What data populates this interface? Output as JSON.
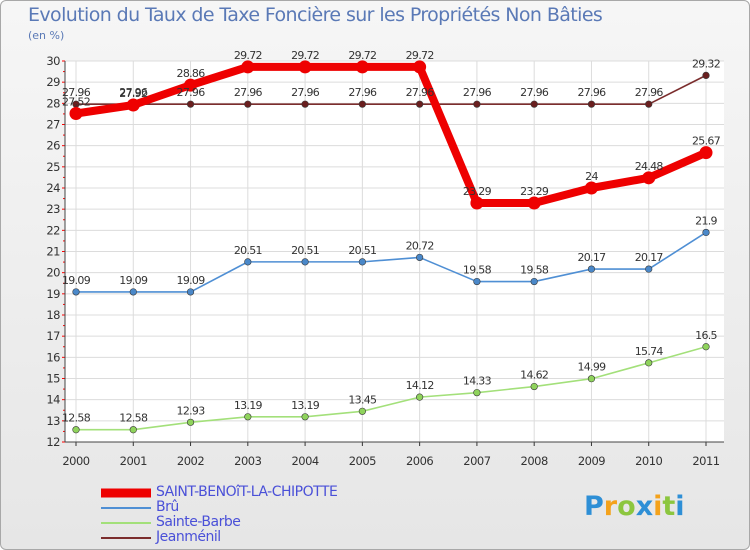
{
  "chart_data": {
    "type": "line",
    "title": "Evolution du Taux de Taxe Foncière sur les Propriétés Non Bâties",
    "ylabel": "(en %)",
    "xlabel": "",
    "ylim": [
      12,
      30
    ],
    "yticks": [
      12,
      13,
      14,
      15,
      16,
      17,
      18,
      19,
      20,
      21,
      22,
      23,
      24,
      25,
      26,
      27,
      28,
      29,
      30
    ],
    "categories": [
      "2000",
      "2001",
      "2002",
      "2003",
      "2004",
      "2005",
      "2006",
      "2007",
      "2008",
      "2009",
      "2010",
      "2011"
    ],
    "series": [
      {
        "name": "Jeanménil",
        "color": "#7b2d2d",
        "markerColor": "#6a1f1f",
        "values": [
          27.96,
          27.96,
          27.96,
          27.96,
          27.96,
          27.96,
          27.96,
          27.96,
          27.96,
          27.96,
          27.96,
          29.32
        ],
        "labels": [
          "27.96",
          "27.96",
          "27.96",
          "27.96",
          "27.96",
          "27.96",
          "27.96",
          "27.96",
          "27.96",
          "27.96",
          "27.96",
          "29.32"
        ]
      },
      {
        "name": "Brû",
        "color": "#4f8fd4",
        "markerColor": "#4a88c9",
        "values": [
          19.09,
          19.09,
          19.09,
          20.51,
          20.51,
          20.51,
          20.72,
          19.58,
          19.58,
          20.17,
          20.17,
          21.9
        ],
        "labels": [
          "19.09",
          "19.09",
          "19.09",
          "20.51",
          "20.51",
          "20.51",
          "20.72",
          "19.58",
          "19.58",
          "20.17",
          "20.17",
          "21.9"
        ]
      },
      {
        "name": "Sainte-Barbe",
        "color": "#a3e07a",
        "markerColor": "#8fd35c",
        "values": [
          12.58,
          12.58,
          12.93,
          13.19,
          13.19,
          13.45,
          14.12,
          14.33,
          14.62,
          14.99,
          15.74,
          16.5
        ],
        "labels": [
          "12.58",
          "12.58",
          "12.93",
          "13.19",
          "13.19",
          "13.45",
          "14.12",
          "14.33",
          "14.62",
          "14.99",
          "15.74",
          "16.5"
        ]
      },
      {
        "name": "SAINT-BENOîT-LA-CHIPOTTE",
        "color": "#ee0000",
        "markerColor": "#ee0000",
        "values": [
          27.52,
          27.92,
          28.86,
          29.72,
          29.72,
          29.72,
          29.72,
          23.29,
          23.29,
          24,
          24.48,
          25.67
        ],
        "labels": [
          "27.52",
          "27.92",
          "28.86",
          "29.72",
          "29.72",
          "29.72",
          "29.72",
          "23.29",
          "23.29",
          "24",
          "24.48",
          "25.67"
        ]
      }
    ],
    "legend": [
      {
        "name": "SAINT-BENOîT-LA-CHIPOTTE",
        "color": "#ee0000"
      },
      {
        "name": "Brû",
        "color": "#4f8fd4"
      },
      {
        "name": "Sainte-Barbe",
        "color": "#a3e07a"
      },
      {
        "name": "Jeanménil",
        "color": "#7b2d2d"
      }
    ]
  },
  "logo": {
    "letters": [
      "P",
      "r",
      "o",
      "x",
      "i",
      "t",
      "i"
    ],
    "colors": [
      "#2e8fd6",
      "#f4a21b",
      "#8cc63f",
      "#2e8fd6",
      "#f4a21b",
      "#8cc63f",
      "#2e8fd6"
    ]
  }
}
